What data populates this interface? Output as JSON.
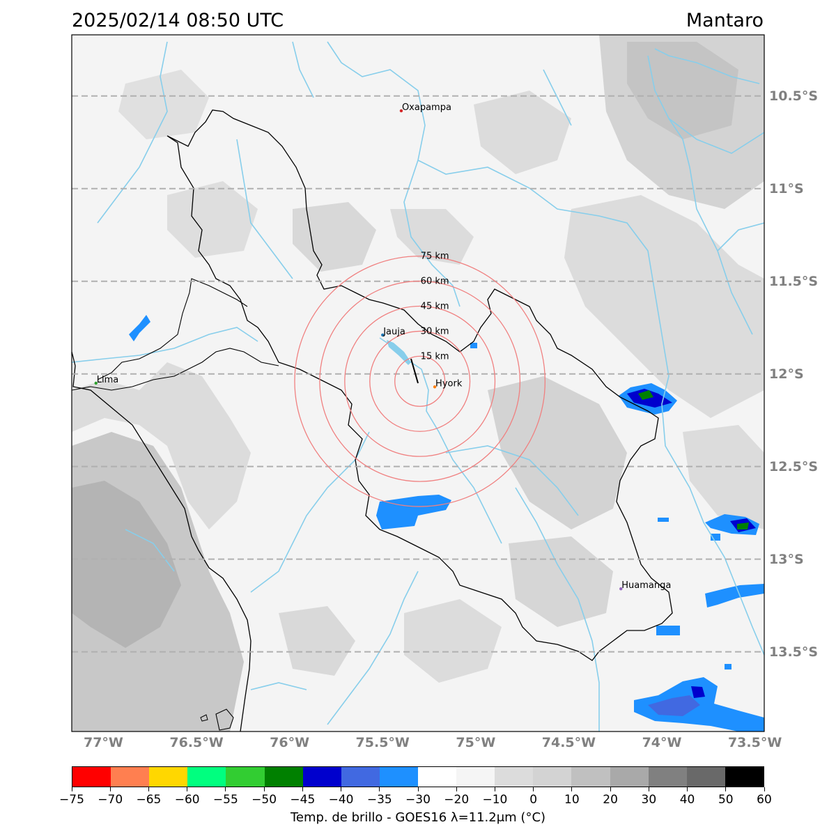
{
  "header": {
    "timestamp": "2025/02/14 08:50 UTC",
    "region": "Mantaro"
  },
  "map": {
    "extent": {
      "lon_min": -77.17,
      "lon_max": -73.45,
      "lat_top": -10.17,
      "lat_bottom": -13.93
    },
    "lat_gridlines": [
      {
        "lat": -10.5,
        "label": "10.5°S"
      },
      {
        "lat": -11.0,
        "label": "11°S"
      },
      {
        "lat": -11.5,
        "label": "11.5°S"
      },
      {
        "lat": -12.0,
        "label": "12°S"
      },
      {
        "lat": -12.5,
        "label": "12.5°S"
      },
      {
        "lat": -13.0,
        "label": "13°S"
      },
      {
        "lat": -13.5,
        "label": "13.5°S"
      }
    ],
    "lon_labels": [
      {
        "lon": -77.0,
        "label": "77°W"
      },
      {
        "lon": -76.5,
        "label": "76.5°W"
      },
      {
        "lon": -76.0,
        "label": "76°W"
      },
      {
        "lon": -75.5,
        "label": "75.5°W"
      },
      {
        "lon": -75.0,
        "label": "75°W"
      },
      {
        "lon": -74.5,
        "label": "74.5°W"
      },
      {
        "lon": -74.0,
        "label": "74°W"
      },
      {
        "lon": -73.5,
        "label": "73.5°W"
      }
    ],
    "cities": [
      {
        "name": "Oxapampa",
        "lon": -75.4,
        "lat": -10.58,
        "color": "#d62728"
      },
      {
        "name": "Jauja",
        "lon": -75.5,
        "lat": -11.79,
        "color": "#1f77b4"
      },
      {
        "name": "Hyork",
        "lon": -75.22,
        "lat": -12.07,
        "color": "#ff7f0e"
      },
      {
        "name": "Lima",
        "lon": -77.04,
        "lat": -12.05,
        "color": "#2ca02c"
      },
      {
        "name": "Huamanga",
        "lon": -74.22,
        "lat": -13.16,
        "color": "#9467bd"
      }
    ],
    "range_rings": {
      "center_lon": -75.3,
      "center_lat": -12.04,
      "rings": [
        {
          "km": 15,
          "label": "15 km"
        },
        {
          "km": 30,
          "label": "30 km"
        },
        {
          "km": 45,
          "label": "45 km"
        },
        {
          "km": 60,
          "label": "60 km"
        },
        {
          "km": 75,
          "label": "75 km"
        }
      ],
      "color": "#f08080"
    },
    "colors": {
      "river": "#87ceeb",
      "boundary": "#000000",
      "gridline": "#b0b0b0",
      "background": "#f4f4f4"
    }
  },
  "colorbar": {
    "colors": [
      "#ff0000",
      "#ff7f50",
      "#ffd700",
      "#00ff7f",
      "#32cd32",
      "#008000",
      "#0000cd",
      "#4169e1",
      "#1e90ff",
      "#ffffff",
      "#f5f5f5",
      "#dcdcdc",
      "#d3d3d3",
      "#c0c0c0",
      "#a9a9a9",
      "#808080",
      "#696969",
      "#000000"
    ],
    "ticks": [
      "−75",
      "−70",
      "−65",
      "−60",
      "−55",
      "−50",
      "−45",
      "−40",
      "−35",
      "−30",
      "−20",
      "−10",
      "0",
      "10",
      "20",
      "30",
      "40",
      "50",
      "60"
    ],
    "label": "Temp. de brillo - GOES16 λ=11.2μm (°C)"
  }
}
